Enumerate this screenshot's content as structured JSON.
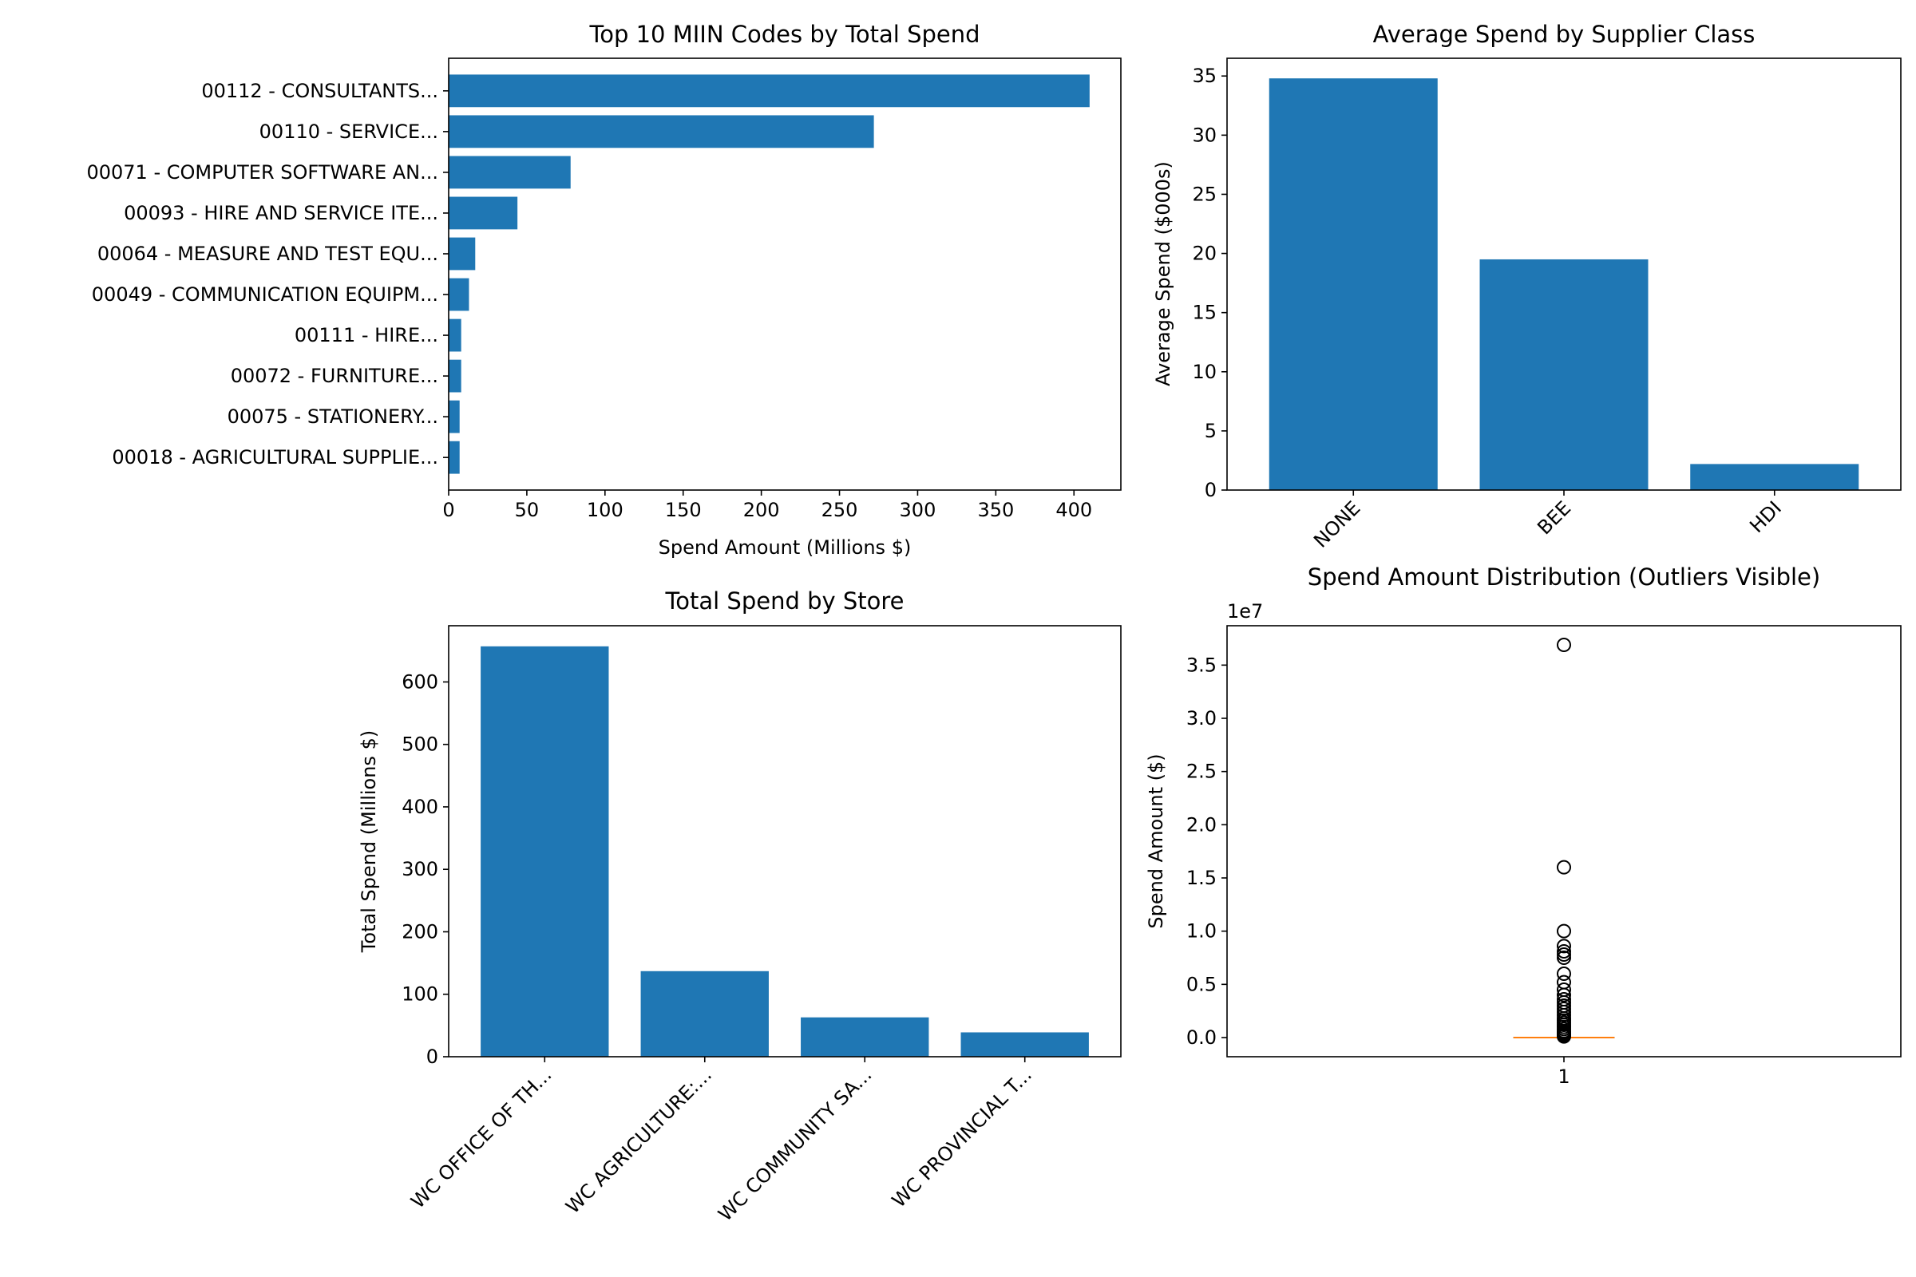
{
  "chart_data": [
    {
      "type": "bar",
      "orientation": "horizontal",
      "title": "Top 10 MIIN Codes by Total Spend",
      "xlabel": "Spend Amount (Millions $)",
      "ylabel": "",
      "xlim": [
        0,
        430
      ],
      "xticks": [
        0,
        50,
        100,
        150,
        200,
        250,
        300,
        350,
        400
      ],
      "categories": [
        "00112 - CONSULTANTS...",
        "00110 - SERVICE...",
        "00071 - COMPUTER SOFTWARE AN...",
        "00093 - HIRE AND SERVICE ITE...",
        "00064 - MEASURE AND TEST EQU...",
        "00049 - COMMUNICATION EQUIPM...",
        "00111 - HIRE...",
        "00072 - FURNITURE...",
        "00075 - STATIONERY...",
        "00018 - AGRICULTURAL SUPPLIE..."
      ],
      "values": [
        410,
        272,
        78,
        44,
        17,
        13,
        8,
        8,
        7,
        7
      ]
    },
    {
      "type": "bar",
      "title": "Average Spend by Supplier Class",
      "xlabel": "",
      "ylabel": "Average Spend ($000s)",
      "ylim": [
        0,
        36.5
      ],
      "yticks": [
        0,
        5,
        10,
        15,
        20,
        25,
        30,
        35
      ],
      "categories": [
        "NONE",
        "BEE",
        "HDI"
      ],
      "values": [
        34.8,
        19.5,
        2.2
      ]
    },
    {
      "type": "bar",
      "title": "Total Spend by Store",
      "xlabel": "",
      "ylabel": "Total Spend (Millions $)",
      "ylim": [
        0,
        690
      ],
      "yticks": [
        0,
        100,
        200,
        300,
        400,
        500,
        600
      ],
      "categories": [
        "WC OFFICE OF TH...",
        "WC AGRICULTURE:...",
        "WC COMMUNITY SA...",
        "WC PROVINCIAL T..."
      ],
      "values": [
        657,
        137,
        63,
        39
      ]
    },
    {
      "type": "box",
      "title": "Spend Amount Distribution (Outliers Visible)",
      "xlabel": "",
      "ylabel": "Spend Amount ($)",
      "offset_label": "1e7",
      "ylim": [
        -0.18,
        3.87
      ],
      "yticks": [
        0.0,
        0.5,
        1.0,
        1.5,
        2.0,
        2.5,
        3.0,
        3.5
      ],
      "ytick_labels": [
        "0.0",
        "0.5",
        "1.0",
        "1.5",
        "2.0",
        "2.5",
        "3.0",
        "3.5"
      ],
      "categories": [
        "1"
      ],
      "median": 0.0,
      "median_color": "#ff7f0e",
      "outliers": [
        3.69,
        1.6,
        1.0,
        0.86,
        0.81,
        0.78,
        0.75,
        0.6,
        0.52,
        0.45,
        0.4,
        0.36,
        0.33,
        0.3,
        0.27,
        0.24,
        0.21,
        0.18,
        0.16,
        0.14,
        0.12,
        0.1,
        0.08,
        0.06,
        0.05,
        0.04,
        0.03,
        0.02,
        0.01
      ]
    }
  ]
}
